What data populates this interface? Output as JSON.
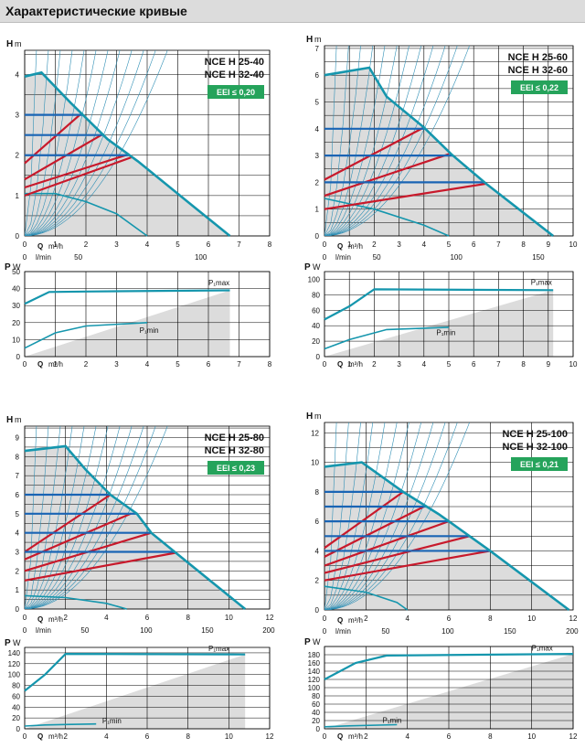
{
  "header": {
    "title": "Характеристические кривые"
  },
  "colors": {
    "envelope": "#1596ad",
    "blue": "#1a64b4",
    "red": "#c8192b",
    "shade": "#dcdcdc",
    "grid": "#000000",
    "eei_bg": "#25a35b",
    "curve_light": "#2f8fb5"
  },
  "common": {
    "h_label": "H",
    "h_unit": "m",
    "q_label": "Q",
    "q_unit": "m³/h",
    "l_unit": "l/min",
    "p_label": "P",
    "p_unit": "W",
    "pmax_label": "P₁max",
    "pmin_label": "P₁min"
  },
  "chart_data": [
    {
      "type": "line",
      "models": [
        "NCE H 25-40",
        "NCE H 32-40"
      ],
      "eei": "EEI ≤ 0,20",
      "xlim": [
        0,
        8
      ],
      "x_ticks": [
        0,
        1,
        2,
        3,
        4,
        5,
        6,
        7,
        8
      ],
      "l_ticks": [
        0,
        50,
        100
      ],
      "l_tick_x": [
        0,
        1.75,
        5.75
      ],
      "head": {
        "ylim": [
          0,
          4.6
        ],
        "y_ticks": [
          0,
          1,
          2,
          3,
          4
        ],
        "envelope": [
          [
            0,
            3.95
          ],
          [
            0.55,
            4.05
          ],
          [
            1.5,
            3.3
          ],
          [
            2.7,
            2.4
          ],
          [
            3.7,
            1.85
          ],
          [
            5.4,
            0.8
          ],
          [
            6.7,
            0
          ]
        ],
        "blue_levels": [
          3,
          2.5,
          2
        ],
        "red_lines": [
          [
            [
              0,
              1.8
            ],
            [
              1.8,
              3.0
            ]
          ],
          [
            [
              0,
              1.4
            ],
            [
              2.5,
              2.5
            ]
          ],
          [
            [
              0,
              1.2
            ],
            [
              3.3,
              2.0
            ]
          ],
          [
            [
              0,
              1.0
            ],
            [
              3.5,
              1.95
            ]
          ]
        ],
        "min_curve": [
          [
            0,
            1.05
          ],
          [
            1,
            1.05
          ],
          [
            2,
            0.85
          ],
          [
            3,
            0.55
          ],
          [
            4,
            0
          ]
        ]
      },
      "power": {
        "ylim": [
          0,
          50
        ],
        "y_ticks": [
          0,
          10,
          20,
          30,
          40,
          50
        ],
        "pmax": [
          [
            0,
            31
          ],
          [
            0.8,
            38
          ],
          [
            2,
            38.3
          ],
          [
            6.7,
            39
          ]
        ],
        "pmin": [
          [
            0,
            5
          ],
          [
            1,
            14
          ],
          [
            2,
            18
          ],
          [
            4,
            20
          ]
        ],
        "pmax_label_q": 6.0,
        "pmax_label_p": 42,
        "pmin_label_q": 3.75,
        "pmin_label_p": 14
      }
    },
    {
      "type": "line",
      "models": [
        "NCE H 25-60",
        "NCE H 32-60"
      ],
      "eei": "EEI ≤ 0,22",
      "xlim": [
        0,
        10
      ],
      "x_ticks": [
        0,
        1,
        2,
        3,
        4,
        5,
        6,
        7,
        8,
        9,
        10
      ],
      "l_ticks": [
        0,
        50,
        100,
        150
      ],
      "l_tick_x": [
        0,
        2.1,
        5.3,
        8.6
      ],
      "head": {
        "ylim": [
          0,
          7.1
        ],
        "y_ticks": [
          0,
          1,
          2,
          3,
          4,
          5,
          6,
          7
        ],
        "envelope": [
          [
            0,
            6.0
          ],
          [
            1.8,
            6.28
          ],
          [
            2.5,
            5.2
          ],
          [
            4,
            4.05
          ],
          [
            5.1,
            3.05
          ],
          [
            6.5,
            1.95
          ],
          [
            9.2,
            0
          ]
        ],
        "blue_levels": [
          4,
          3,
          2
        ],
        "red_lines": [
          [
            [
              0,
              2.1
            ],
            [
              4.0,
              4.05
            ]
          ],
          [
            [
              0,
              1.5
            ],
            [
              5.0,
              3.05
            ]
          ],
          [
            [
              0,
              1.0
            ],
            [
              6.5,
              1.95
            ]
          ]
        ],
        "min_curve": [
          [
            0,
            1.4
          ],
          [
            2,
            1.0
          ],
          [
            4,
            0.4
          ],
          [
            5,
            0
          ]
        ]
      },
      "power": {
        "ylim": [
          0,
          110
        ],
        "y_ticks": [
          0,
          20,
          40,
          60,
          80,
          100
        ],
        "pmax": [
          [
            0,
            48
          ],
          [
            1,
            65
          ],
          [
            2,
            87
          ],
          [
            9.2,
            86
          ]
        ],
        "pmin": [
          [
            0,
            10
          ],
          [
            1,
            22
          ],
          [
            2.5,
            35
          ],
          [
            5,
            38
          ]
        ],
        "pmax_label_q": 8.3,
        "pmax_label_p": 93,
        "pmin_label_q": 4.5,
        "pmin_label_p": 28
      }
    },
    {
      "type": "line",
      "models": [
        "NCE H 25-80",
        "NCE H 32-80"
      ],
      "eei": "EEI ≤ 0,23",
      "xlim": [
        0,
        12
      ],
      "x_ticks": [
        0,
        2,
        4,
        6,
        8,
        10,
        12
      ],
      "l_ticks": [
        0,
        50,
        100,
        150,
        200
      ],
      "l_tick_x": [
        0,
        2.95,
        5.95,
        8.95,
        11.95
      ],
      "head": {
        "ylim": [
          0,
          9.6
        ],
        "y_ticks": [
          0,
          1,
          2,
          3,
          4,
          5,
          6,
          7,
          8,
          9
        ],
        "envelope": [
          [
            0,
            8.3
          ],
          [
            2,
            8.55
          ],
          [
            3,
            7.3
          ],
          [
            4.2,
            6.0
          ],
          [
            5.5,
            5.0
          ],
          [
            6.2,
            4.0
          ],
          [
            7.4,
            2.95
          ],
          [
            10.8,
            0
          ]
        ],
        "blue_levels": [
          6,
          5,
          4,
          3
        ],
        "red_lines": [
          [
            [
              0,
              3.0
            ],
            [
              4.2,
              6.0
            ]
          ],
          [
            [
              0,
              2.6
            ],
            [
              5.2,
              5.0
            ]
          ],
          [
            [
              0,
              2.0
            ],
            [
              6.2,
              4.0
            ]
          ],
          [
            [
              0,
              1.5
            ],
            [
              7.4,
              2.95
            ]
          ]
        ],
        "min_curve": [
          [
            0,
            0.7
          ],
          [
            2,
            0.6
          ],
          [
            4,
            0.3
          ],
          [
            5,
            0
          ]
        ]
      },
      "power": {
        "ylim": [
          0,
          150
        ],
        "y_ticks": [
          0,
          20,
          40,
          60,
          80,
          100,
          120,
          140
        ],
        "pmax": [
          [
            0,
            70
          ],
          [
            1,
            100
          ],
          [
            2,
            138
          ],
          [
            10.8,
            137
          ]
        ],
        "pmin": [
          [
            0,
            5
          ],
          [
            1,
            7
          ],
          [
            2,
            8
          ],
          [
            3.5,
            9
          ]
        ],
        "pmax_label_q": 9.0,
        "pmax_label_p": 143,
        "pmin_label_q": 3.8,
        "pmin_label_p": 10
      }
    },
    {
      "type": "line",
      "models": [
        "NCE H 25-100",
        "NCE H 32-100"
      ],
      "eei": "EEI ≤ 0,21",
      "xlim": [
        0,
        12
      ],
      "x_ticks": [
        0,
        2,
        4,
        6,
        8,
        10,
        12
      ],
      "l_ticks": [
        0,
        50,
        100,
        150,
        200
      ],
      "l_tick_x": [
        0,
        2.95,
        5.95,
        8.95,
        11.95
      ],
      "head": {
        "ylim": [
          0,
          12.7
        ],
        "y_ticks": [
          0,
          2,
          4,
          6,
          8,
          10,
          12
        ],
        "envelope": [
          [
            0,
            9.7
          ],
          [
            1.8,
            10.0
          ],
          [
            3.8,
            8.0
          ],
          [
            5.5,
            6.5
          ],
          [
            6,
            6.0
          ],
          [
            7.0,
            5.0
          ],
          [
            8,
            4.0
          ],
          [
            11.8,
            0
          ]
        ],
        "blue_levels": [
          8,
          7,
          6,
          5,
          4
        ],
        "red_lines": [
          [
            [
              0,
              4.2
            ],
            [
              3.8,
              8.0
            ]
          ],
          [
            [
              0,
              3.6
            ],
            [
              4.8,
              7.0
            ]
          ],
          [
            [
              0,
              3.0
            ],
            [
              6.0,
              6.0
            ]
          ],
          [
            [
              0,
              2.5
            ],
            [
              7.0,
              5.0
            ]
          ],
          [
            [
              0,
              2.0
            ],
            [
              8.0,
              4.0
            ]
          ]
        ],
        "min_curve": [
          [
            0,
            1.6
          ],
          [
            2,
            1.2
          ],
          [
            3.5,
            0.5
          ],
          [
            4,
            0
          ]
        ]
      },
      "power": {
        "ylim": [
          0,
          200
        ],
        "y_ticks": [
          0,
          20,
          40,
          60,
          80,
          100,
          120,
          140,
          160,
          180
        ],
        "pmax": [
          [
            0,
            120
          ],
          [
            1.5,
            160
          ],
          [
            3,
            178
          ],
          [
            12,
            182
          ]
        ],
        "pmin": [
          [
            0,
            5
          ],
          [
            1,
            7
          ],
          [
            3.5,
            10
          ]
        ],
        "pmax_label_q": 10.0,
        "pmax_label_p": 190,
        "pmin_label_q": 2.8,
        "pmin_label_p": 15
      }
    }
  ]
}
